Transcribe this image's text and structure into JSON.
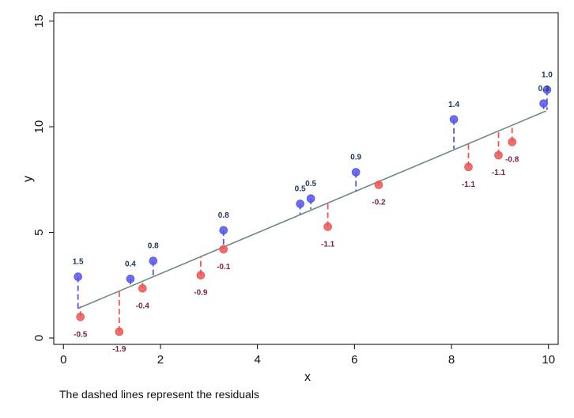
{
  "chart_data": {
    "type": "scatter",
    "title": "",
    "xlabel": "x",
    "ylabel": "y",
    "xlim": [
      -0.2,
      10.2
    ],
    "ylim": [
      -0.3,
      15.4
    ],
    "xticks": [
      "0",
      "2",
      "4",
      "6",
      "8",
      "10"
    ],
    "yticks": [
      "0",
      "5",
      "10",
      "15"
    ],
    "note": "The dashed lines represent the residuals",
    "fit_line": {
      "x": [
        0.3,
        9.95
      ],
      "y": [
        1.4,
        10.75
      ]
    },
    "series": [
      {
        "color": "#5555ee",
        "residual_color": "#1f3566",
        "points": [
          {
            "x": 0.3,
            "y": 2.9,
            "fit": 1.4,
            "label": "1.5"
          },
          {
            "x": 1.38,
            "y": 2.8,
            "fit": 2.4,
            "label": "0.4"
          },
          {
            "x": 1.85,
            "y": 3.65,
            "fit": 2.85,
            "label": "0.8"
          },
          {
            "x": 3.3,
            "y": 5.1,
            "fit": 4.3,
            "label": "0.8"
          },
          {
            "x": 4.88,
            "y": 6.35,
            "fit": 5.85,
            "label": "0.5"
          },
          {
            "x": 5.1,
            "y": 6.6,
            "fit": 6.1,
            "label": "0.5"
          },
          {
            "x": 6.03,
            "y": 7.85,
            "fit": 6.95,
            "label": "0.9"
          },
          {
            "x": 8.05,
            "y": 10.35,
            "fit": 8.95,
            "label": "1.4"
          },
          {
            "x": 9.9,
            "y": 11.1,
            "fit": 10.8,
            "label": "0.3"
          },
          {
            "x": 9.97,
            "y": 11.75,
            "fit": 10.8,
            "label": "1.0"
          }
        ]
      },
      {
        "color": "#ee5555",
        "residual_color": "#7a1f3d",
        "points": [
          {
            "x": 0.35,
            "y": 1.0,
            "fit": 1.5,
            "label": "-0.5"
          },
          {
            "x": 1.15,
            "y": 0.3,
            "fit": 2.2,
            "label": "-1.9"
          },
          {
            "x": 1.63,
            "y": 2.35,
            "fit": 2.75,
            "label": "-0.4"
          },
          {
            "x": 2.83,
            "y": 2.97,
            "fit": 3.87,
            "label": "-0.9"
          },
          {
            "x": 3.3,
            "y": 4.2,
            "fit": 4.3,
            "label": "-0.1"
          },
          {
            "x": 5.45,
            "y": 5.27,
            "fit": 6.37,
            "label": "-1.1"
          },
          {
            "x": 6.5,
            "y": 7.25,
            "fit": 7.45,
            "label": "-0.2"
          },
          {
            "x": 8.35,
            "y": 8.1,
            "fit": 9.2,
            "label": "-1.1"
          },
          {
            "x": 8.97,
            "y": 8.65,
            "fit": 9.75,
            "label": "-1.1"
          },
          {
            "x": 9.25,
            "y": 9.28,
            "fit": 10.08,
            "label": "-0.8"
          }
        ]
      }
    ]
  }
}
